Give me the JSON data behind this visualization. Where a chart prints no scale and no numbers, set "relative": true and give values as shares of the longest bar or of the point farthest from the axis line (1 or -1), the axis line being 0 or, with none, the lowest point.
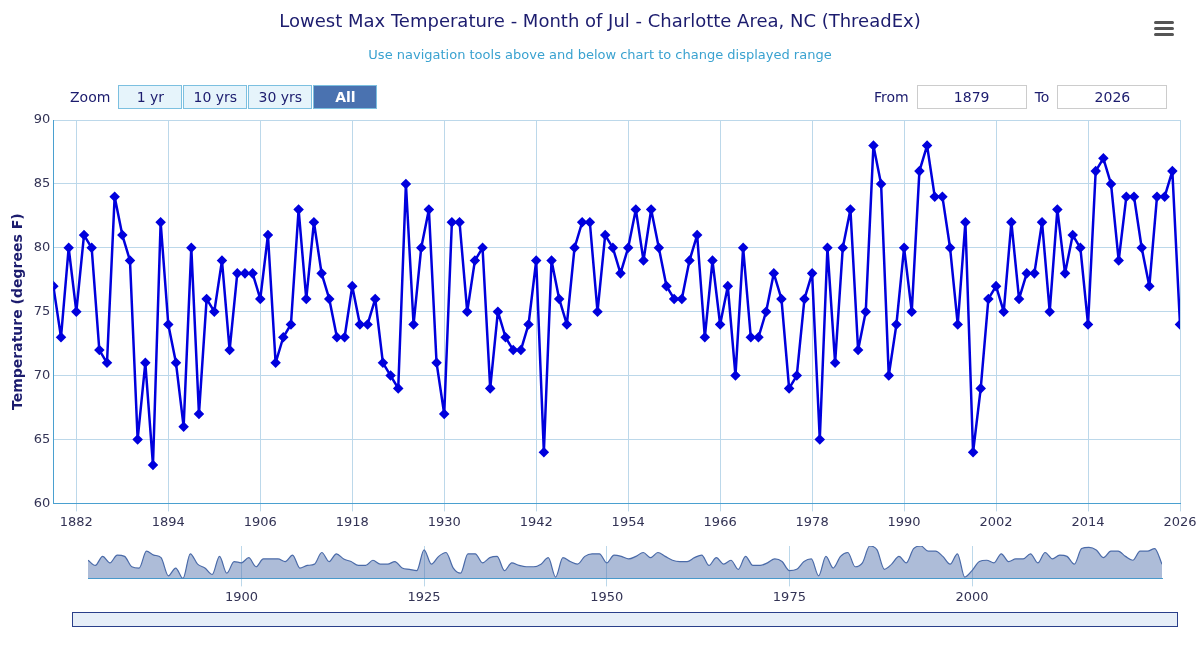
{
  "chart_data": [
    {
      "type": "line",
      "title": "Lowest Max Temperature - Month of Jul - Charlotte Area, NC (ThreadEx)",
      "subtitle": "Use navigation tools above and below chart to change displayed range",
      "ylabel": "Temperature (degrees F)",
      "annotations": [
        "Zoom",
        "1 yr",
        "10 yrs",
        "30 yrs",
        "All",
        "From",
        "1879",
        "To",
        "2026"
      ],
      "x": [
        1879,
        1880,
        1881,
        1882,
        1883,
        1884,
        1885,
        1886,
        1887,
        1888,
        1889,
        1890,
        1891,
        1892,
        1893,
        1894,
        1895,
        1896,
        1897,
        1898,
        1899,
        1900,
        1901,
        1902,
        1903,
        1904,
        1905,
        1906,
        1907,
        1908,
        1909,
        1910,
        1911,
        1912,
        1913,
        1914,
        1915,
        1916,
        1917,
        1918,
        1919,
        1920,
        1921,
        1922,
        1923,
        1924,
        1925,
        1926,
        1927,
        1928,
        1929,
        1930,
        1931,
        1932,
        1933,
        1934,
        1935,
        1936,
        1937,
        1938,
        1939,
        1940,
        1941,
        1942,
        1943,
        1944,
        1945,
        1946,
        1947,
        1948,
        1949,
        1950,
        1951,
        1952,
        1953,
        1954,
        1955,
        1956,
        1957,
        1958,
        1959,
        1960,
        1961,
        1962,
        1963,
        1964,
        1965,
        1966,
        1967,
        1968,
        1969,
        1970,
        1971,
        1972,
        1973,
        1974,
        1975,
        1976,
        1977,
        1978,
        1979,
        1980,
        1981,
        1982,
        1983,
        1984,
        1985,
        1986,
        1987,
        1988,
        1989,
        1990,
        1991,
        1992,
        1993,
        1994,
        1995,
        1996,
        1997,
        1998,
        1999,
        2000,
        2001,
        2002,
        2003,
        2004,
        2005,
        2006,
        2007,
        2008,
        2009,
        2010,
        2011,
        2012,
        2013,
        2014,
        2015,
        2016,
        2017,
        2018,
        2019,
        2020,
        2021,
        2022,
        2023,
        2024,
        2025,
        2026
      ],
      "values": [
        77,
        73,
        80,
        75,
        81,
        80,
        72,
        71,
        84,
        81,
        79,
        65,
        71,
        63,
        82,
        74,
        71,
        66,
        80,
        67,
        76,
        75,
        79,
        72,
        78,
        78,
        78,
        76,
        81,
        71,
        73,
        74,
        83,
        76,
        82,
        78,
        76,
        73,
        73,
        77,
        74,
        74,
        76,
        71,
        70,
        69,
        85,
        74,
        80,
        83,
        71,
        67,
        82,
        82,
        75,
        79,
        80,
        69,
        75,
        73,
        72,
        72,
        74,
        79,
        64,
        79,
        76,
        74,
        80,
        82,
        82,
        75,
        81,
        80,
        78,
        80,
        83,
        79,
        83,
        80,
        77,
        76,
        76,
        79,
        81,
        73,
        79,
        74,
        77,
        70,
        80,
        73,
        73,
        75,
        78,
        76,
        69,
        70,
        76,
        78,
        65,
        80,
        71,
        80,
        83,
        72,
        75,
        88,
        85,
        70,
        74,
        80,
        75,
        86,
        88,
        84,
        84,
        80,
        74,
        82,
        64,
        69,
        76,
        77,
        75,
        82,
        76,
        78,
        78,
        82,
        75,
        83,
        78,
        81,
        80,
        74,
        86,
        87,
        85,
        79,
        84,
        84,
        80,
        77,
        84,
        84,
        86,
        74
      ],
      "color": "#0000dd",
      "marker": "diamond",
      "xlim": [
        1879,
        2026
      ],
      "xticks": [
        1882,
        1894,
        1906,
        1918,
        1930,
        1942,
        1954,
        1966,
        1978,
        1990,
        2002,
        2014,
        2026
      ],
      "ylim": [
        60,
        90
      ],
      "yticks": [
        60,
        65,
        70,
        75,
        80,
        85,
        90
      ],
      "grid": true
    },
    {
      "type": "area",
      "relative": true,
      "color": "#4a6aa8",
      "tick_labels": "x",
      "grid": "x",
      "xlim": [
        1879,
        2026
      ],
      "xticks": [
        1900,
        1925,
        1950,
        1975,
        2000
      ],
      "x": [
        1879,
        1880,
        1881,
        1882,
        1883,
        1884,
        1885,
        1886,
        1887,
        1888,
        1889,
        1890,
        1891,
        1892,
        1893,
        1894,
        1895,
        1896,
        1897,
        1898,
        1899,
        1900,
        1901,
        1902,
        1903,
        1904,
        1905,
        1906,
        1907,
        1908,
        1909,
        1910,
        1911,
        1912,
        1913,
        1914,
        1915,
        1916,
        1917,
        1918,
        1919,
        1920,
        1921,
        1922,
        1923,
        1924,
        1925,
        1926,
        1927,
        1928,
        1929,
        1930,
        1931,
        1932,
        1933,
        1934,
        1935,
        1936,
        1937,
        1938,
        1939,
        1940,
        1941,
        1942,
        1943,
        1944,
        1945,
        1946,
        1947,
        1948,
        1949,
        1950,
        1951,
        1952,
        1953,
        1954,
        1955,
        1956,
        1957,
        1958,
        1959,
        1960,
        1961,
        1962,
        1963,
        1964,
        1965,
        1966,
        1967,
        1968,
        1969,
        1970,
        1971,
        1972,
        1973,
        1974,
        1975,
        1976,
        1977,
        1978,
        1979,
        1980,
        1981,
        1982,
        1983,
        1984,
        1985,
        1986,
        1987,
        1988,
        1989,
        1990,
        1991,
        1992,
        1993,
        1994,
        1995,
        1996,
        1997,
        1998,
        1999,
        2000,
        2001,
        2002,
        2003,
        2004,
        2005,
        2006,
        2007,
        2008,
        2009,
        2010,
        2011,
        2012,
        2013,
        2014,
        2015,
        2016,
        2017,
        2018,
        2019,
        2020,
        2021,
        2022,
        2023,
        2024,
        2025,
        2026
      ],
      "values": [
        0.56,
        0.4,
        0.68,
        0.48,
        0.72,
        0.68,
        0.36,
        0.32,
        0.84,
        0.72,
        0.64,
        0.08,
        0.32,
        0,
        0.76,
        0.44,
        0.32,
        0.12,
        0.68,
        0.16,
        0.52,
        0.48,
        0.64,
        0.36,
        0.6,
        0.6,
        0.6,
        0.52,
        0.72,
        0.32,
        0.4,
        0.44,
        0.8,
        0.52,
        0.76,
        0.6,
        0.52,
        0.4,
        0.4,
        0.56,
        0.44,
        0.44,
        0.52,
        0.32,
        0.28,
        0.24,
        0.88,
        0.44,
        0.68,
        0.8,
        0.32,
        0.16,
        0.76,
        0.76,
        0.48,
        0.64,
        0.68,
        0.24,
        0.48,
        0.4,
        0.36,
        0.36,
        0.44,
        0.64,
        0.04,
        0.64,
        0.52,
        0.44,
        0.68,
        0.76,
        0.76,
        0.48,
        0.72,
        0.68,
        0.6,
        0.68,
        0.8,
        0.64,
        0.8,
        0.68,
        0.56,
        0.52,
        0.52,
        0.64,
        0.72,
        0.4,
        0.64,
        0.44,
        0.56,
        0.28,
        0.68,
        0.4,
        0.4,
        0.48,
        0.6,
        0.52,
        0.24,
        0.28,
        0.52,
        0.6,
        0.08,
        0.68,
        0.32,
        0.68,
        0.8,
        0.36,
        0.48,
        1,
        0.88,
        0.28,
        0.44,
        0.68,
        0.48,
        0.92,
        1,
        0.84,
        0.84,
        0.68,
        0.44,
        0.76,
        0.04,
        0.24,
        0.52,
        0.56,
        0.48,
        0.76,
        0.52,
        0.6,
        0.6,
        0.76,
        0.48,
        0.8,
        0.6,
        0.72,
        0.68,
        0.44,
        0.92,
        0.96,
        0.88,
        0.64,
        0.84,
        0.84,
        0.68,
        0.56,
        0.84,
        0.84,
        0.92,
        0.44
      ]
    }
  ]
}
